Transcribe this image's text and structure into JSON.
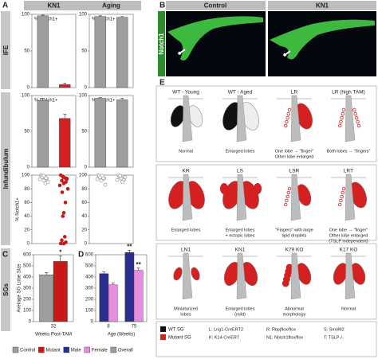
{
  "panel_letters": [
    "A",
    "B",
    "C",
    "D",
    "E"
  ],
  "row_labels": [
    "IFE",
    "Infundibulum",
    "SGs"
  ],
  "chart_data": [
    {
      "type": "bar",
      "title": "KN1",
      "subtitle": "% Notch1+",
      "categories": [
        null,
        null
      ],
      "values": [
        98,
        4
      ],
      "errors": [
        1,
        2
      ],
      "colors": [
        "#9e9e9e",
        "#d42020"
      ],
      "ylim": [
        0,
        100
      ],
      "yticks": [
        0,
        50,
        100
      ]
    },
    {
      "type": "bar",
      "title": "Aging",
      "subtitle": "% Notch1+",
      "categories": [
        null,
        null
      ],
      "values": [
        97,
        96
      ],
      "errors": [
        1,
        1
      ],
      "colors": [
        "#9e9e9e",
        "#9e9e9e"
      ],
      "ylim": [
        0,
        100
      ],
      "yticks": [
        0,
        50,
        100
      ]
    },
    {
      "type": "bar",
      "subtitle": "% Notch1+",
      "categories": [
        null,
        null
      ],
      "values": [
        93,
        68
      ],
      "errors": [
        3,
        6
      ],
      "colors": [
        "#9e9e9e",
        "#d42020"
      ],
      "ylim": [
        0,
        100
      ],
      "yticks": [
        0,
        50,
        100
      ]
    },
    {
      "type": "bar",
      "subtitle": "% Notch1+",
      "categories": [
        null,
        null
      ],
      "values": [
        96,
        94
      ],
      "errors": [
        1,
        2
      ],
      "colors": [
        "#9e9e9e",
        "#9e9e9e"
      ],
      "ylim": [
        0,
        100
      ],
      "yticks": [
        0,
        50,
        100
      ]
    },
    {
      "type": "scatter",
      "ylabel": "% Notch1+",
      "xlim": [
        0.4,
        2.6
      ],
      "ylim": [
        0,
        100
      ],
      "yticks": [
        0,
        20,
        40,
        60,
        80,
        100
      ],
      "series": [
        {
          "color": "#888888",
          "marker": "open",
          "x": [
            0.85,
            0.95,
            1.05,
            1.15,
            0.9,
            1.1,
            1.0,
            0.8,
            1.2,
            0.92,
            1.08,
            1.0
          ],
          "values": [
            100,
            98,
            97,
            95,
            99,
            96,
            92,
            94,
            90,
            97,
            88,
            99
          ]
        },
        {
          "color": "#c81818",
          "marker": "filled",
          "x": [
            1.85,
            1.95,
            2.05,
            2.15,
            1.9,
            2.1,
            2.0,
            1.8,
            2.2,
            1.92,
            2.08,
            2.0,
            1.95,
            2.05,
            1.9,
            2.1,
            2.0,
            1.85,
            2.15,
            1.98
          ],
          "values": [
            100,
            98,
            96,
            94,
            92,
            90,
            88,
            85,
            80,
            75,
            60,
            45,
            40,
            10,
            5,
            2,
            0,
            0,
            95,
            97
          ]
        }
      ]
    },
    {
      "type": "scatter",
      "xlim": [
        0.4,
        2.6
      ],
      "ylim": [
        0,
        100
      ],
      "yticks": [
        0,
        20,
        40,
        60,
        80,
        100
      ],
      "series": [
        {
          "color": "#888888",
          "marker": "open",
          "x": [
            0.85,
            0.95,
            1.05,
            1.15,
            0.9,
            1.1,
            1.0,
            0.8,
            1.2,
            0.95,
            1.05
          ],
          "values": [
            100,
            98,
            97,
            95,
            99,
            96,
            92,
            94,
            86,
            97,
            99
          ]
        },
        {
          "color": "#888888",
          "marker": "open",
          "x": [
            1.85,
            1.95,
            2.05,
            2.15,
            1.9,
            2.1,
            2.0,
            1.8,
            2.2,
            1.95,
            2.05
          ],
          "values": [
            100,
            97,
            96,
            94,
            98,
            92,
            95,
            93,
            97,
            99,
            90
          ]
        }
      ]
    },
    {
      "type": "bar",
      "ylabel": "Average SG Lobe Size",
      "xlabel": "Weeks Post-TAM",
      "categories": [
        "32"
      ],
      "ylim": [
        0,
        600
      ],
      "yticks": [
        0,
        100,
        200,
        300,
        400,
        500,
        600
      ],
      "series": [
        {
          "color": "#9e9e9e",
          "values": [
            420
          ],
          "errors": [
            20
          ]
        },
        {
          "color": "#c81818",
          "values": [
            540
          ],
          "errors": [
            50
          ]
        }
      ],
      "annotations": [
        {
          "text": "*",
          "series": 1,
          "index": 0
        }
      ]
    },
    {
      "type": "bar",
      "xlabel": "Age (Weeks)",
      "categories": [
        "8",
        "75"
      ],
      "ylim": [
        0,
        600
      ],
      "yticks": [
        0,
        100,
        200,
        300,
        400,
        500,
        600
      ],
      "series": [
        {
          "color": "#2a2f8f",
          "values": [
            430,
            620
          ],
          "errors": [
            15,
            20
          ]
        },
        {
          "color": "#e58ee0",
          "values": [
            330,
            460
          ],
          "errors": [
            15,
            20
          ]
        }
      ],
      "annotations": [
        {
          "text": "**",
          "series": 0,
          "index": 1
        },
        {
          "text": "**",
          "series": 1,
          "index": 1
        }
      ]
    }
  ],
  "legend": [
    {
      "label": "Control",
      "color": "#9e9e9e"
    },
    {
      "label": "Mutant",
      "color": "#c81818"
    },
    {
      "label": "Male",
      "color": "#2a2f8f"
    },
    {
      "label": "Female",
      "color": "#e58ee0"
    },
    {
      "label": "Overall",
      "color": "#9e9e9e"
    }
  ],
  "panel_b": {
    "columns": [
      "Control",
      "KN1"
    ],
    "stain": "Notch1"
  },
  "panel_e": {
    "items": [
      {
        "title": "WT - Young",
        "caption": [
          "Normal"
        ]
      },
      {
        "title": "WT - Aged",
        "caption": [
          "Enlarged lobes"
        ]
      },
      {
        "title": "LR",
        "caption": [
          "One lobe → \"finger\"",
          "Other lobe enlarged"
        ]
      },
      {
        "title": "LR (high TAM)",
        "caption": [
          "Both lobes → \"fingers\""
        ]
      },
      {
        "title": "KR",
        "caption": [
          "Enlarged lobes"
        ]
      },
      {
        "title": "LS",
        "caption": [
          "Enlarged lobes",
          "+ ectopic lobes"
        ]
      },
      {
        "title": "LSR",
        "caption": [
          "\"Fingers\" with large",
          "lipid droplets"
        ]
      },
      {
        "title": "LRT",
        "caption": [
          "One lobe → \"finger\"",
          "Other lobe enlarged",
          "(TSLP independent)"
        ]
      },
      {
        "title": "LN1",
        "caption": [
          "Miniaturized",
          "lobes"
        ]
      },
      {
        "title": "KN1",
        "caption": [
          "Enlarged lobes",
          "(mild)"
        ]
      },
      {
        "title": "K79 KO",
        "caption": [
          "Abnormal",
          "morphology"
        ]
      },
      {
        "title": "K17 KO",
        "caption": [
          "Normal"
        ]
      }
    ],
    "key": [
      {
        "label": "WT SG",
        "color": "#111111"
      },
      {
        "label": "Mutant SG",
        "color": "#d42020"
      }
    ],
    "abbreviations": [
      "L: Lrig1-CreERT2",
      "K: K14-CreERT",
      "R: Rbpjflox/flox",
      "N1: Notch1flox/flox",
      "S: SmoM2",
      "T: TSLP-/-"
    ]
  }
}
